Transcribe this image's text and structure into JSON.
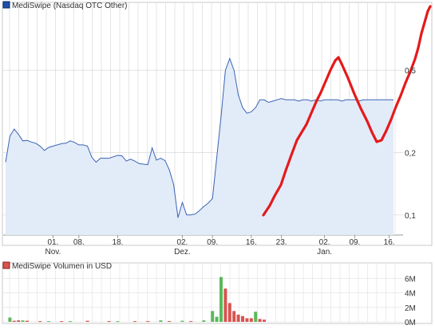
{
  "chart_data": [
    {
      "type": "area",
      "legend": {
        "label": "MediSwipe (Nasdaq OTC Other)",
        "placement": "top-left",
        "color": "#1f4ea8"
      },
      "x_tick_labels": [
        "01.",
        "08.",
        "18.",
        "02.",
        "09.",
        "16.",
        "23.",
        "02.",
        "09.",
        "16."
      ],
      "month_labels": [
        {
          "at": 0,
          "text": "Nov."
        },
        {
          "at": 3,
          "text": "Dez."
        },
        {
          "at": 7,
          "text": "Jan."
        }
      ],
      "y_scale": "log",
      "y_ticks": [
        {
          "value": 0.1,
          "label": "0,1"
        },
        {
          "value": 0.2,
          "label": "0,2"
        },
        {
          "value": 0.5,
          "label": "0,5"
        }
      ],
      "ylim": [
        0.08,
        1.0
      ],
      "grid": true,
      "colors": {
        "line": "#3a64b4",
        "fill": "#e2ebf8",
        "annotation": "#e41a1c",
        "grid": "#d4d4d4"
      },
      "series": [
        {
          "date_index": [
            0,
            1,
            2,
            3,
            4,
            5,
            6,
            7,
            8,
            9,
            10,
            11,
            12,
            13,
            14,
            15,
            16,
            17,
            18,
            19,
            20,
            21,
            22,
            23,
            24,
            25,
            26,
            27,
            28,
            29,
            30,
            31,
            32,
            33,
            34,
            35,
            36,
            37,
            38,
            39,
            40,
            41,
            42,
            43,
            44,
            45,
            46,
            47,
            48,
            49,
            50,
            51,
            52,
            53,
            54,
            55,
            56,
            57,
            58,
            59,
            60,
            61,
            62,
            63,
            64,
            65,
            66,
            67,
            68,
            69,
            70,
            71,
            72,
            73,
            74,
            75,
            76,
            77,
            78,
            79,
            80,
            81,
            82,
            83,
            84,
            85,
            86,
            87,
            88,
            89,
            90
          ],
          "values": [
            0.18,
            0.24,
            0.26,
            0.245,
            0.228,
            0.229,
            0.225,
            0.222,
            0.215,
            0.205,
            0.212,
            0.215,
            0.218,
            0.221,
            0.222,
            0.228,
            0.224,
            0.218,
            0.218,
            0.215,
            0.19,
            0.18,
            0.188,
            0.188,
            0.188,
            0.191,
            0.194,
            0.193,
            0.182,
            0.186,
            0.182,
            0.177,
            0.176,
            0.175,
            0.211,
            0.184,
            0.188,
            0.183,
            0.165,
            0.14,
            0.097,
            0.115,
            0.1,
            0.1,
            0.101,
            0.105,
            0.11,
            0.114,
            0.12,
            0.19,
            0.3,
            0.5,
            0.57,
            0.5,
            0.38,
            0.33,
            0.31,
            0.315,
            0.33,
            0.36,
            0.36,
            0.35,
            0.355,
            0.36,
            0.365,
            0.36,
            0.36,
            0.36,
            0.355,
            0.36,
            0.36,
            0.355,
            0.36,
            0.355,
            0.36,
            0.36,
            0.36,
            0.36,
            0.355,
            0.36,
            0.36,
            0.36,
            0.355,
            0.36,
            0.36,
            0.36,
            0.36,
            0.36,
            0.36,
            0.36,
            0.36
          ]
        }
      ]
    },
    {
      "type": "bar",
      "legend": {
        "label": "MediSwipe Volumen in USD",
        "placement": "top-left",
        "color": "#d9534f"
      },
      "y_ticks": [
        {
          "value": 0,
          "label": "0M"
        },
        {
          "value": 2,
          "label": "2M"
        },
        {
          "value": 4,
          "label": "4M"
        },
        {
          "value": 6,
          "label": "6M"
        }
      ],
      "ylim": [
        0,
        6.5
      ],
      "colors": {
        "up": "#5cb85c",
        "down": "#d9534f"
      },
      "bars": [
        {
          "d": 1,
          "v": 0.6,
          "up": true
        },
        {
          "d": 2,
          "v": 0.15,
          "up": false
        },
        {
          "d": 3,
          "v": 0.2,
          "up": false
        },
        {
          "d": 4,
          "v": 0.2,
          "up": true
        },
        {
          "d": 5,
          "v": 0.15,
          "up": false
        },
        {
          "d": 8,
          "v": 0.1,
          "up": false
        },
        {
          "d": 10,
          "v": 0.1,
          "up": true
        },
        {
          "d": 13,
          "v": 0.1,
          "up": false
        },
        {
          "d": 15,
          "v": 0.1,
          "up": true
        },
        {
          "d": 19,
          "v": 0.15,
          "up": false
        },
        {
          "d": 24,
          "v": 0.1,
          "up": false
        },
        {
          "d": 26,
          "v": 0.1,
          "up": true
        },
        {
          "d": 30,
          "v": 0.1,
          "up": false
        },
        {
          "d": 33,
          "v": 0.1,
          "up": false
        },
        {
          "d": 36,
          "v": 0.2,
          "up": true
        },
        {
          "d": 38,
          "v": 0.1,
          "up": false
        },
        {
          "d": 41,
          "v": 0.15,
          "up": true
        },
        {
          "d": 43,
          "v": 0.1,
          "up": false
        },
        {
          "d": 46,
          "v": 0.2,
          "up": true
        },
        {
          "d": 48,
          "v": 1.5,
          "up": true
        },
        {
          "d": 49,
          "v": 0.7,
          "up": true
        },
        {
          "d": 50,
          "v": 6.2,
          "up": true
        },
        {
          "d": 51,
          "v": 4.6,
          "up": false
        },
        {
          "d": 52,
          "v": 2.6,
          "up": false
        },
        {
          "d": 53,
          "v": 1.5,
          "up": false
        },
        {
          "d": 54,
          "v": 1.0,
          "up": false
        },
        {
          "d": 55,
          "v": 0.8,
          "up": false
        },
        {
          "d": 56,
          "v": 0.5,
          "up": false
        },
        {
          "d": 57,
          "v": 0.5,
          "up": false
        },
        {
          "d": 58,
          "v": 1.4,
          "up": true
        },
        {
          "d": 59,
          "v": 0.4,
          "up": false
        },
        {
          "d": 60,
          "v": 0.3,
          "up": false
        }
      ]
    }
  ]
}
